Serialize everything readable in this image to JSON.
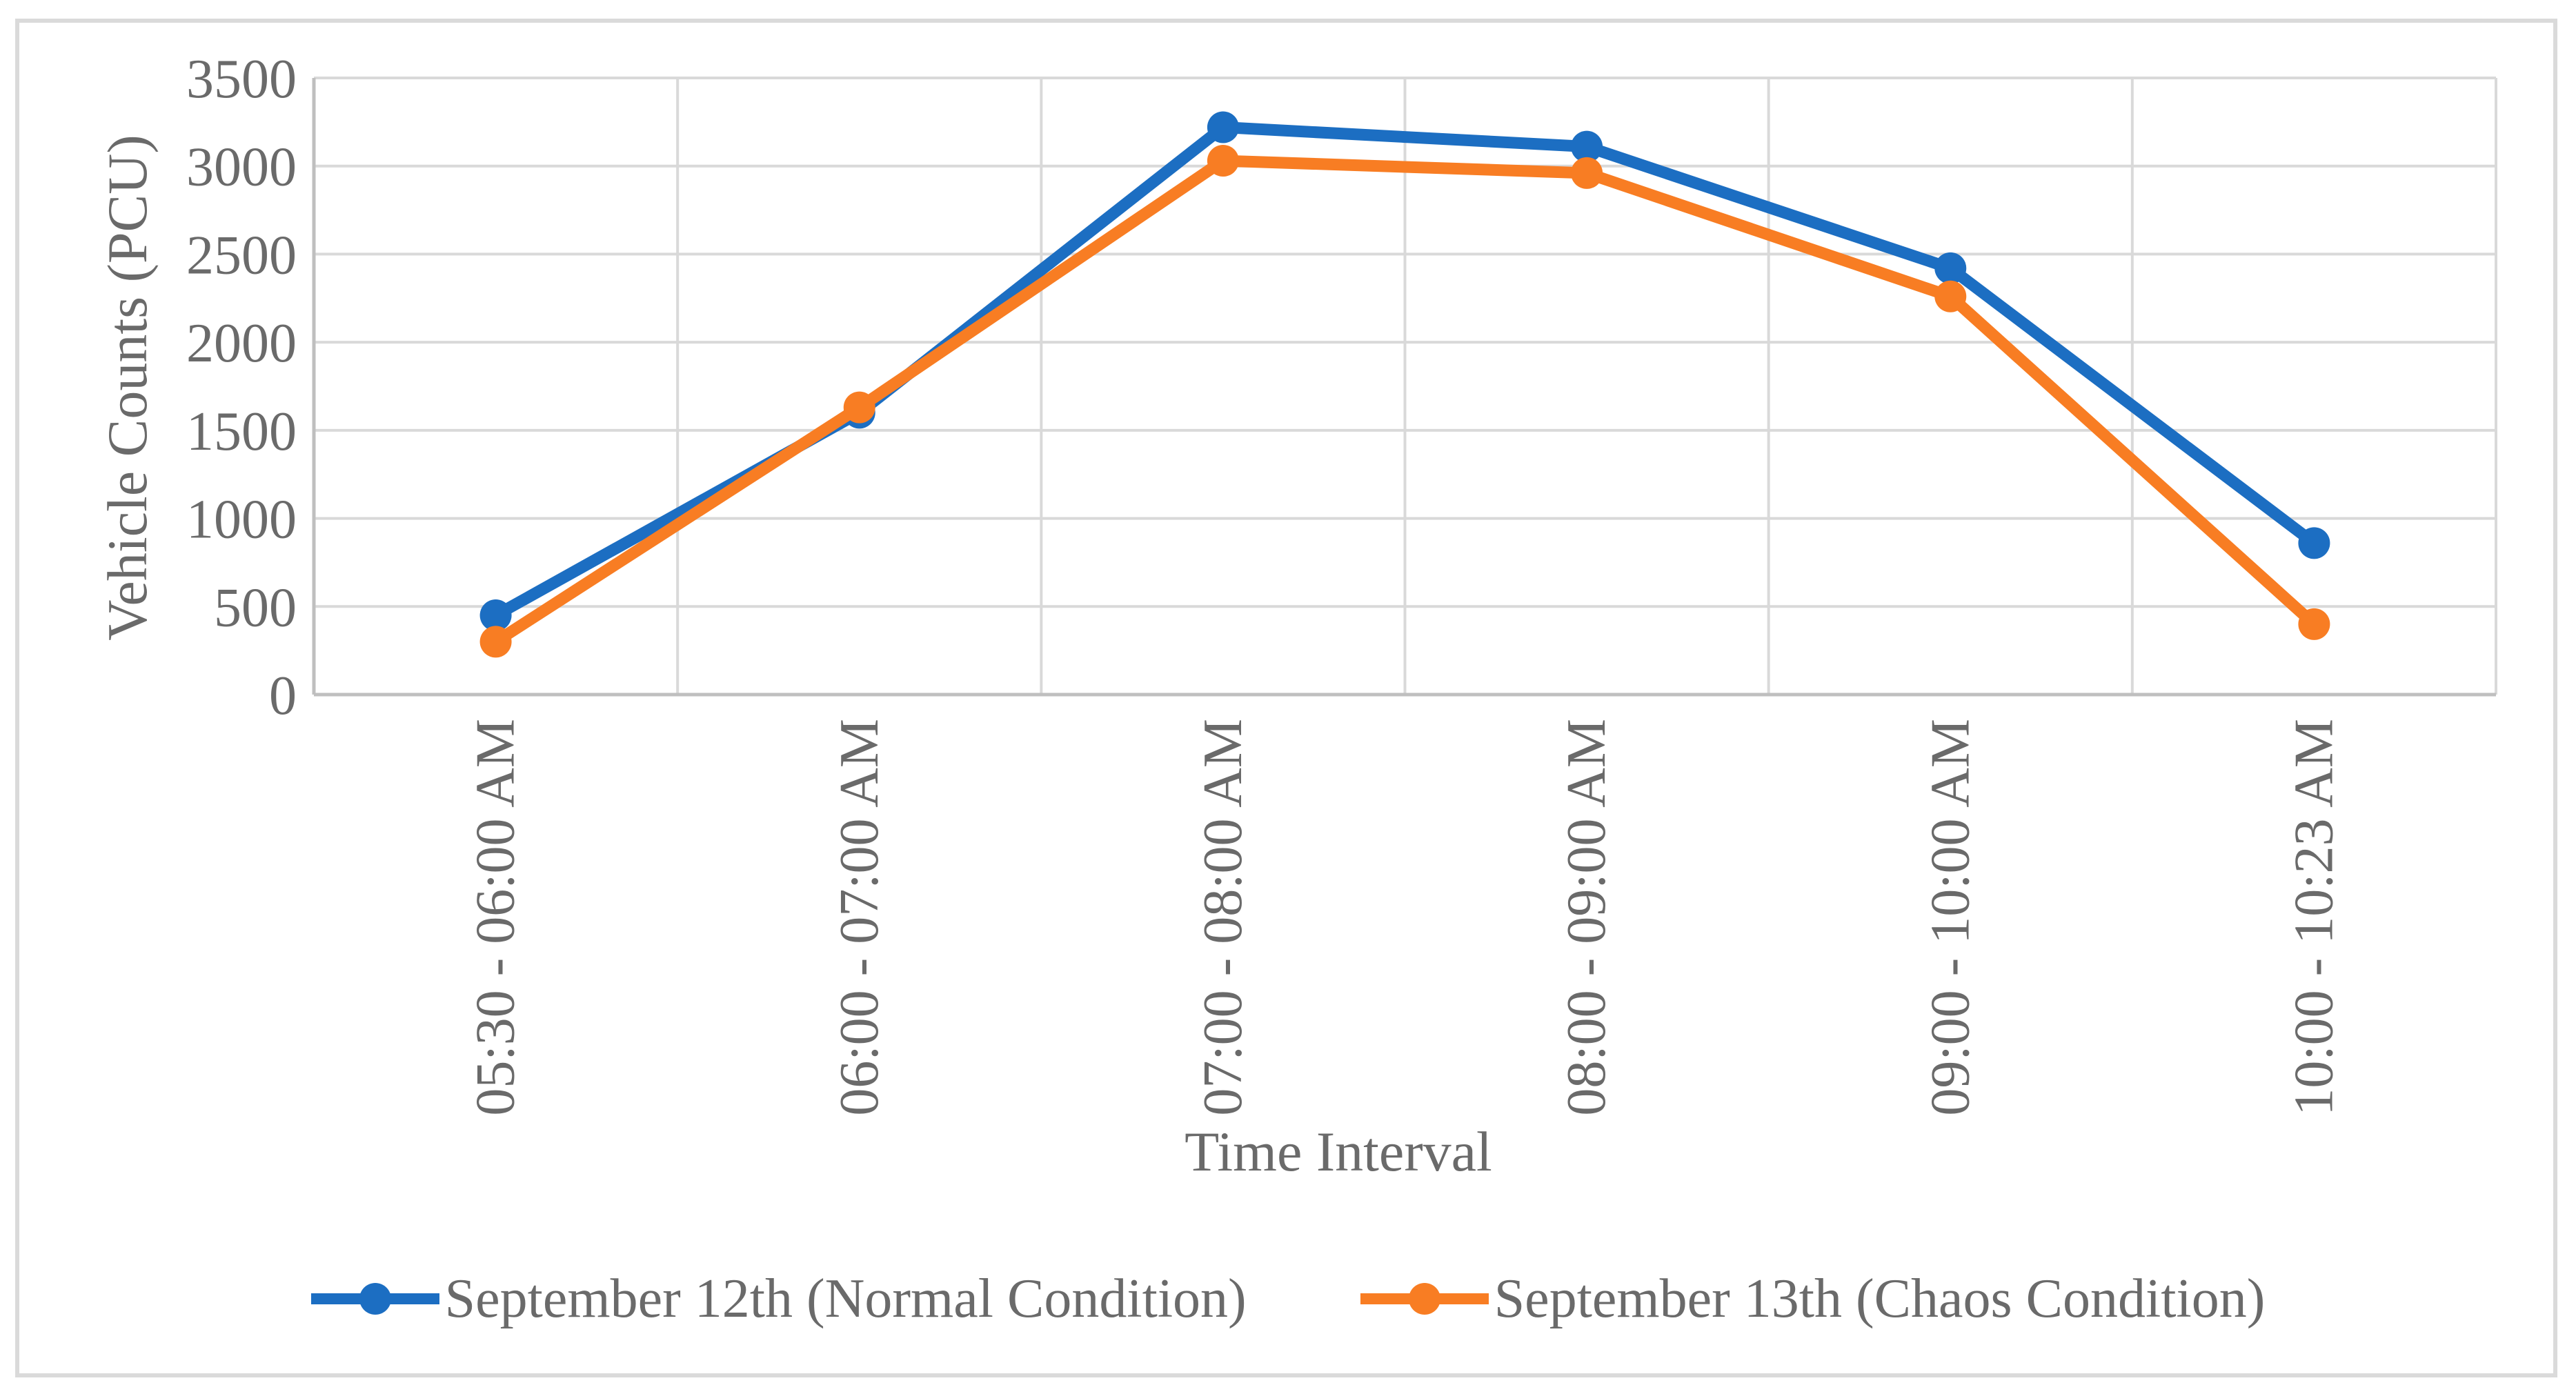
{
  "chart": {
    "background": "#FFFFFF",
    "border_color": "#DADADA",
    "gridline_color": "#D9D9D9",
    "axis_line_color": "#BFBFBF",
    "text_color": "#6A6A6A"
  },
  "chart_data": {
    "type": "line",
    "title": "",
    "xlabel": "Time Interval",
    "ylabel": "Vehicle Counts (PCU)",
    "categories": [
      "05:30 - 06:00 AM",
      "06:00 - 07:00 AM",
      "07:00 - 08:00 AM",
      "08:00 - 09:00 AM",
      "09:00 - 10:00 AM",
      "10:00 - 10:23 AM"
    ],
    "series": [
      {
        "name": "September 12th (Normal Condition)",
        "color": "#1C6EC2",
        "values": [
          450,
          1600,
          3220,
          3110,
          2420,
          860
        ]
      },
      {
        "name": "September 13th (Chaos Condition)",
        "color": "#F87D23",
        "values": [
          300,
          1630,
          3030,
          2960,
          2260,
          400
        ]
      }
    ],
    "ylim": [
      0,
      3500
    ],
    "y_ticks": [
      0,
      500,
      1000,
      1500,
      2000,
      2500,
      3000,
      3500
    ],
    "grid": true,
    "marker": "circle",
    "legend_position": "bottom"
  }
}
